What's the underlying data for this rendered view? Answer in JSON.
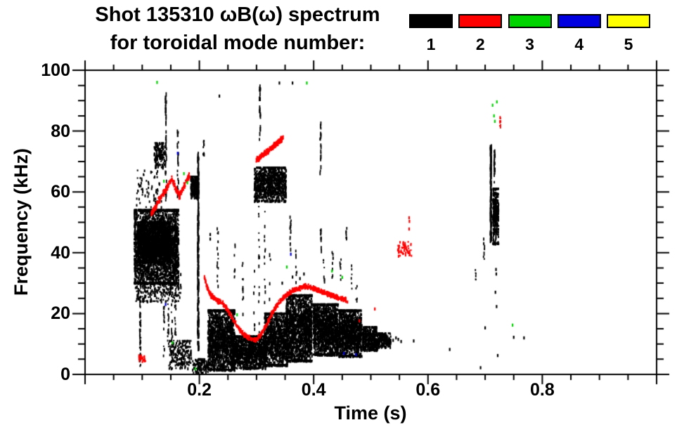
{
  "chart_data": {
    "type": "scatter",
    "title": "Shot 135310 ωB(ω) spectrum",
    "subtitle": "for toroidal mode number:",
    "xlabel": "Time (s)",
    "ylabel": "Frequency (kHz)",
    "xlim": [
      0.0,
      1.0
    ],
    "ylim": [
      0,
      100
    ],
    "x_major_ticks": [
      0.2,
      0.4,
      0.6,
      0.8
    ],
    "x_tick_labels": [
      "0.2",
      "0.4",
      "0.6",
      "0.8"
    ],
    "x_minor_step": 0.05,
    "y_major_ticks": [
      0,
      20,
      40,
      60,
      80,
      100
    ],
    "y_tick_labels": [
      "0",
      "20",
      "40",
      "60",
      "80",
      "100"
    ],
    "y_minor_step": 5,
    "grid": false,
    "legend_position": "top-right",
    "axis_color": "#000000",
    "modes": [
      {
        "label": "1",
        "color": "#000000"
      },
      {
        "label": "2",
        "color": "#ff0000"
      },
      {
        "label": "3",
        "color": "#00d400"
      },
      {
        "label": "4",
        "color": "#0000e0"
      },
      {
        "label": "5",
        "color": "#ffff00"
      }
    ],
    "features": [
      {
        "m": 1,
        "kind": "blob",
        "t": [
          0.086,
          0.164
        ],
        "f": [
          30,
          54
        ],
        "n": 2600
      },
      {
        "m": 1,
        "kind": "blob",
        "t": [
          0.092,
          0.15
        ],
        "f": [
          37,
          50
        ],
        "n": 1500
      },
      {
        "m": 1,
        "kind": "blob",
        "t": [
          0.088,
          0.168
        ],
        "f": [
          24,
          33
        ],
        "n": 280
      },
      {
        "m": 1,
        "kind": "blob",
        "t": [
          0.09,
          0.135
        ],
        "f": [
          54,
          67
        ],
        "n": 70
      },
      {
        "m": 1,
        "kind": "vstreak",
        "t": 0.0965,
        "f": [
          2,
          29
        ],
        "n": 45,
        "dash": [
          2,
          6
        ]
      },
      {
        "m": 1,
        "kind": "vstreak",
        "t": 0.138,
        "f": [
          6,
          30
        ],
        "n": 22,
        "dash": [
          2,
          5
        ]
      },
      {
        "m": 1,
        "kind": "vstreak",
        "t": 0.1455,
        "f": [
          8,
          28
        ],
        "n": 18,
        "dash": [
          2,
          5
        ]
      },
      {
        "m": 1,
        "kind": "vstreak",
        "t": 0.152,
        "f": [
          4,
          26
        ],
        "n": 18,
        "dash": [
          2,
          5
        ]
      },
      {
        "m": 1,
        "kind": "vstreak",
        "t": 0.158,
        "f": [
          12,
          30
        ],
        "n": 14,
        "dash": [
          2,
          5
        ]
      },
      {
        "m": 1,
        "kind": "blob",
        "t": [
          0.147,
          0.186
        ],
        "f": [
          2,
          11
        ],
        "n": 200
      },
      {
        "m": 1,
        "kind": "blob",
        "t": [
          0.188,
          0.216
        ],
        "f": [
          0.5,
          5
        ],
        "n": 130
      },
      {
        "m": 1,
        "kind": "vstreak",
        "t": 0.1415,
        "f": [
          56,
          95
        ],
        "n": 40,
        "dash": [
          3,
          8
        ]
      },
      {
        "m": 1,
        "kind": "vstreak",
        "t": 0.1625,
        "f": [
          58,
          80
        ],
        "n": 26,
        "dash": [
          3,
          7
        ]
      },
      {
        "m": 1,
        "kind": "blob",
        "t": [
          0.121,
          0.14
        ],
        "f": [
          68,
          76
        ],
        "n": 150
      },
      {
        "m": 1,
        "kind": "blob",
        "t": [
          0.185,
          0.199
        ],
        "f": [
          58,
          65
        ],
        "n": 220
      },
      {
        "m": 1,
        "kind": "vstreak",
        "t": 0.198,
        "f": [
          8,
          73
        ],
        "n": 200,
        "dash": [
          3,
          9
        ]
      },
      {
        "m": 1,
        "kind": "vstreak",
        "t": 0.2075,
        "f": [
          72,
          77
        ],
        "n": 8,
        "dash": [
          2,
          5
        ]
      },
      {
        "m": 1,
        "kind": "dots",
        "pts": [
          [
            0.235,
            91.5
          ],
          [
            0.208,
            75.5
          ],
          [
            0.306,
            94
          ],
          [
            0.34,
            95.8
          ],
          [
            0.363,
            95.8
          ],
          [
            0.219,
            44.5
          ],
          [
            0.219,
            46
          ]
        ]
      },
      {
        "m": 1,
        "kind": "vstreak",
        "t": 0.232,
        "f": [
          26,
          48
        ],
        "n": 14,
        "dash": [
          2,
          5
        ]
      },
      {
        "m": 1,
        "kind": "vstreak",
        "t": 0.262,
        "f": [
          30,
          44
        ],
        "n": 9,
        "dash": [
          2,
          4
        ]
      },
      {
        "m": 1,
        "kind": "vstreak",
        "t": 0.276,
        "f": [
          18,
          40
        ],
        "n": 12,
        "dash": [
          2,
          5
        ]
      },
      {
        "m": 1,
        "kind": "blob",
        "t": [
          0.215,
          0.262
        ],
        "f": [
          1.5,
          21
        ],
        "n": 1500
      },
      {
        "m": 1,
        "kind": "blob",
        "t": [
          0.256,
          0.316
        ],
        "f": [
          2,
          12.5
        ],
        "n": 1100
      },
      {
        "m": 1,
        "kind": "blob",
        "t": [
          0.314,
          0.354
        ],
        "f": [
          3,
          20
        ],
        "n": 1000
      },
      {
        "m": 1,
        "kind": "blob",
        "t": [
          0.352,
          0.397
        ],
        "f": [
          4.5,
          26
        ],
        "n": 1600
      },
      {
        "m": 1,
        "kind": "blob",
        "t": [
          0.399,
          0.443
        ],
        "f": [
          6.5,
          23
        ],
        "n": 1400
      },
      {
        "m": 1,
        "kind": "blob",
        "t": [
          0.444,
          0.484
        ],
        "f": [
          6,
          21
        ],
        "n": 1150
      },
      {
        "m": 1,
        "kind": "blob",
        "t": [
          0.485,
          0.512
        ],
        "f": [
          8,
          15.5
        ],
        "n": 420
      },
      {
        "m": 1,
        "kind": "blob",
        "t": [
          0.512,
          0.535
        ],
        "f": [
          9,
          13.5
        ],
        "n": 200
      },
      {
        "m": 1,
        "kind": "dots",
        "pts": [
          [
            0.539,
            11.2
          ],
          [
            0.544,
            12
          ],
          [
            0.548,
            11.5
          ],
          [
            0.553,
            10.8
          ]
        ]
      },
      {
        "m": 1,
        "kind": "blob",
        "t": [
          0.296,
          0.352
        ],
        "f": [
          57,
          68
        ],
        "n": 900
      },
      {
        "m": 1,
        "kind": "vstreak",
        "t": 0.306,
        "f": [
          77,
          95
        ],
        "n": 26,
        "dash": [
          3,
          7
        ]
      },
      {
        "m": 1,
        "kind": "vstreak",
        "t": 0.3045,
        "f": [
          12,
          56
        ],
        "n": 16,
        "dash": [
          2,
          6
        ]
      },
      {
        "m": 1,
        "kind": "vstreak",
        "t": 0.3145,
        "f": [
          6,
          54
        ],
        "n": 14,
        "dash": [
          2,
          6
        ]
      },
      {
        "m": 1,
        "kind": "vstreak",
        "t": 0.3235,
        "f": [
          8,
          50
        ],
        "n": 12,
        "dash": [
          2,
          6
        ]
      },
      {
        "m": 1,
        "kind": "vstreak",
        "t": 0.296,
        "f": [
          12,
          36
        ],
        "n": 8,
        "dash": [
          2,
          5
        ]
      },
      {
        "m": 1,
        "kind": "vstreak",
        "t": 0.3595,
        "f": [
          40,
          52
        ],
        "n": 14,
        "dash": [
          2,
          6
        ]
      },
      {
        "m": 1,
        "kind": "vstreak",
        "t": 0.3695,
        "f": [
          28,
          42
        ],
        "n": 9,
        "dash": [
          2,
          5
        ]
      },
      {
        "m": 1,
        "kind": "dots",
        "pts": [
          [
            0.363,
            32
          ],
          [
            0.376,
            31.5
          ],
          [
            0.383,
            33
          ],
          [
            0.345,
            30
          ]
        ]
      },
      {
        "m": 1,
        "kind": "vstreak",
        "t": 0.412,
        "f": [
          66,
          85
        ],
        "n": 20,
        "dash": [
          3,
          7
        ]
      },
      {
        "m": 1,
        "kind": "vstreak",
        "t": 0.4125,
        "f": [
          40,
          50
        ],
        "n": 12,
        "dash": [
          2,
          6
        ]
      },
      {
        "m": 1,
        "kind": "vstreak",
        "t": 0.418,
        "f": [
          28,
          38
        ],
        "n": 8,
        "dash": [
          2,
          5
        ]
      },
      {
        "m": 1,
        "kind": "vstreak",
        "t": 0.433,
        "f": [
          30,
          42
        ],
        "n": 8,
        "dash": [
          2,
          5
        ]
      },
      {
        "m": 1,
        "kind": "vstreak",
        "t": 0.447,
        "f": [
          28,
          40
        ],
        "n": 8,
        "dash": [
          2,
          4
        ]
      },
      {
        "m": 1,
        "kind": "vstreak",
        "t": 0.457,
        "f": [
          44,
          50
        ],
        "n": 8,
        "dash": [
          2,
          5
        ]
      },
      {
        "m": 1,
        "kind": "vstreak",
        "t": 0.466,
        "f": [
          28,
          36
        ],
        "n": 6,
        "dash": [
          2,
          4
        ]
      },
      {
        "m": 1,
        "kind": "vstreak",
        "t": 0.475,
        "f": [
          24,
          32
        ],
        "n": 5,
        "dash": [
          2,
          4
        ]
      },
      {
        "m": 1,
        "kind": "vstreak",
        "t": 0.683,
        "f": [
          31,
          35
        ],
        "n": 6,
        "dash": [
          2,
          5
        ]
      },
      {
        "m": 1,
        "kind": "vstreak",
        "t": 0.698,
        "f": [
          37,
          46
        ],
        "n": 9,
        "dash": [
          2,
          6
        ]
      },
      {
        "m": 1,
        "kind": "vstreak",
        "t": 0.71,
        "f": [
          44,
          75
        ],
        "n": 130,
        "dash": [
          3,
          9
        ]
      },
      {
        "m": 1,
        "kind": "vstreak",
        "t": 0.7165,
        "f": [
          63,
          74
        ],
        "n": 22,
        "dash": [
          3,
          7
        ]
      },
      {
        "m": 1,
        "kind": "blob",
        "t": [
          0.7135,
          0.7235
        ],
        "f": [
          43,
          61
        ],
        "n": 300
      },
      {
        "m": 1,
        "kind": "dots",
        "pts": [
          [
            0.7,
            15.3
          ],
          [
            0.718,
            27
          ],
          [
            0.72,
            22.3
          ],
          [
            0.7195,
            33
          ],
          [
            0.719,
            34.5
          ],
          [
            0.722,
            6.2
          ],
          [
            0.75,
            12.2
          ],
          [
            0.692,
            2.2
          ],
          [
            0.575,
            11
          ],
          [
            0.638,
            8.2
          ],
          [
            0.768,
            12
          ]
        ]
      },
      {
        "m": 2,
        "kind": "trace",
        "pts": [
          [
            0.115,
            52.5
          ],
          [
            0.1225,
            55
          ],
          [
            0.13,
            57.5
          ],
          [
            0.1375,
            59.5
          ],
          [
            0.145,
            62
          ],
          [
            0.152,
            64.5
          ],
          [
            0.1585,
            61
          ],
          [
            0.165,
            58.5
          ],
          [
            0.172,
            61.5
          ],
          [
            0.1785,
            64
          ],
          [
            0.183,
            65.5
          ]
        ],
        "n": 300,
        "jit": 1.2
      },
      {
        "m": 2,
        "kind": "blob",
        "t": [
          0.094,
          0.106
        ],
        "f": [
          4.3,
          6.3
        ],
        "n": 26
      },
      {
        "m": 2,
        "kind": "trace",
        "pts": [
          [
            0.2085,
            32.5
          ],
          [
            0.213,
            29
          ],
          [
            0.2185,
            26.5
          ],
          [
            0.2295,
            24.2
          ],
          [
            0.2405,
            23.6
          ],
          [
            0.2495,
            21
          ],
          [
            0.259,
            18
          ],
          [
            0.2695,
            15
          ],
          [
            0.2795,
            12.8
          ],
          [
            0.29,
            11.6
          ],
          [
            0.2995,
            11.3
          ],
          [
            0.3085,
            13.2
          ],
          [
            0.3185,
            16.8
          ],
          [
            0.328,
            20.4
          ],
          [
            0.3375,
            23.2
          ],
          [
            0.347,
            25.2
          ],
          [
            0.3565,
            26.6
          ],
          [
            0.366,
            27.8
          ],
          [
            0.3755,
            28.4
          ],
          [
            0.385,
            29
          ],
          [
            0.3945,
            28.6
          ],
          [
            0.4035,
            28
          ],
          [
            0.413,
            27.2
          ],
          [
            0.4225,
            26.6
          ],
          [
            0.4315,
            26
          ],
          [
            0.4405,
            25.4
          ],
          [
            0.4495,
            25
          ],
          [
            0.4565,
            24.4
          ]
        ],
        "n": 900,
        "jit": 0.9
      },
      {
        "m": 2,
        "kind": "trace",
        "pts": [
          [
            0.2995,
            70.4
          ],
          [
            0.309,
            71.8
          ],
          [
            0.3185,
            73.2
          ],
          [
            0.328,
            74.8
          ],
          [
            0.3375,
            76.2
          ],
          [
            0.3465,
            77.8
          ]
        ],
        "n": 260,
        "jit": 1.1
      },
      {
        "m": 2,
        "kind": "blob",
        "t": [
          0.547,
          0.5715
        ],
        "f": [
          39,
          43.5
        ],
        "n": 55
      },
      {
        "m": 2,
        "kind": "dots",
        "pts": [
          [
            0.567,
            47.8
          ],
          [
            0.5675,
            50.3
          ],
          [
            0.567,
            51.5
          ],
          [
            0.48,
            17.6
          ],
          [
            0.507,
            21.5
          ],
          [
            0.459,
            23.8
          ]
        ]
      },
      {
        "m": 2,
        "kind": "vstreak",
        "t": 0.7265,
        "f": [
          81,
          84.5
        ],
        "n": 9,
        "dash": [
          2,
          5
        ]
      },
      {
        "m": 3,
        "kind": "dots",
        "pts": [
          [
            0.126,
            96
          ],
          [
            0.138,
            63.5
          ],
          [
            0.153,
            10.4
          ],
          [
            0.173,
            66
          ],
          [
            0.179,
            63
          ],
          [
            0.193,
            1.8
          ],
          [
            0.266,
            19.6
          ],
          [
            0.353,
            35.3
          ],
          [
            0.388,
            95.8
          ],
          [
            0.432,
            34
          ],
          [
            0.45,
            31.9
          ],
          [
            0.713,
            88.5
          ],
          [
            0.7155,
            85
          ],
          [
            0.717,
            83.2
          ],
          [
            0.7205,
            89.6
          ],
          [
            0.748,
            16.2
          ]
        ]
      },
      {
        "m": 4,
        "kind": "dots",
        "pts": [
          [
            0.141,
            23
          ],
          [
            0.162,
            72.7
          ],
          [
            0.36,
            39.5
          ],
          [
            0.453,
            6.9
          ],
          [
            0.474,
            6.5
          ]
        ]
      }
    ]
  }
}
